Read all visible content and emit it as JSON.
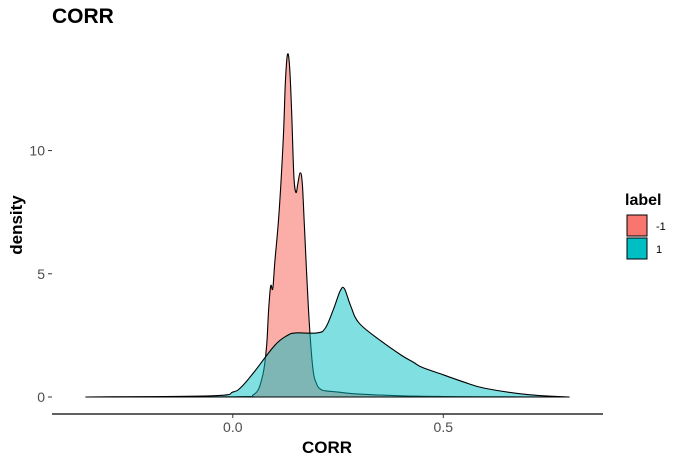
{
  "chart_data": {
    "type": "area",
    "title": "CORR",
    "xlabel": "CORR",
    "ylabel": "density",
    "xlim": [
      -0.37,
      0.82
    ],
    "ylim": [
      0,
      14
    ],
    "x_ticks": [
      {
        "value": 0.0,
        "label": "0.0"
      },
      {
        "value": 0.5,
        "label": "0.5"
      }
    ],
    "y_ticks": [
      {
        "value": 0,
        "label": "0"
      },
      {
        "value": 5,
        "label": "5"
      },
      {
        "value": 10,
        "label": "10"
      }
    ],
    "grid": false,
    "legend": {
      "title": "label",
      "position": "right"
    },
    "series": [
      {
        "name": "-1",
        "color": "#F8766D",
        "opacity": 0.6,
        "x": [
          -0.35,
          0.0,
          0.05,
          0.07,
          0.08,
          0.085,
          0.09,
          0.095,
          0.1,
          0.11,
          0.12,
          0.125,
          0.13,
          0.135,
          0.14,
          0.145,
          0.15,
          0.155,
          0.16,
          0.165,
          0.17,
          0.18,
          0.19,
          0.2,
          0.21,
          0.22,
          0.25,
          0.3,
          0.4,
          0.5,
          0.6,
          0.8
        ],
        "values": [
          0,
          0.01,
          0.1,
          0.8,
          2.0,
          3.5,
          4.5,
          4.4,
          5.5,
          7.5,
          10.5,
          12.8,
          13.9,
          13.4,
          11.5,
          9.0,
          8.3,
          8.7,
          9.1,
          8.7,
          7.0,
          3.5,
          1.2,
          0.5,
          0.3,
          0.25,
          0.2,
          0.12,
          0.05,
          0.02,
          0.01,
          0
        ]
      },
      {
        "name": "1",
        "color": "#00BFC4",
        "opacity": 0.5,
        "x": [
          -0.35,
          -0.05,
          0.0,
          0.02,
          0.05,
          0.1,
          0.13,
          0.15,
          0.2,
          0.22,
          0.24,
          0.255,
          0.265,
          0.28,
          0.3,
          0.35,
          0.4,
          0.43,
          0.45,
          0.5,
          0.55,
          0.6,
          0.7,
          0.8
        ],
        "values": [
          0,
          0.05,
          0.2,
          0.4,
          1.0,
          2.1,
          2.5,
          2.6,
          2.6,
          2.8,
          3.6,
          4.3,
          4.4,
          3.7,
          3.0,
          2.3,
          1.7,
          1.4,
          1.2,
          0.9,
          0.6,
          0.35,
          0.1,
          0
        ]
      }
    ]
  }
}
